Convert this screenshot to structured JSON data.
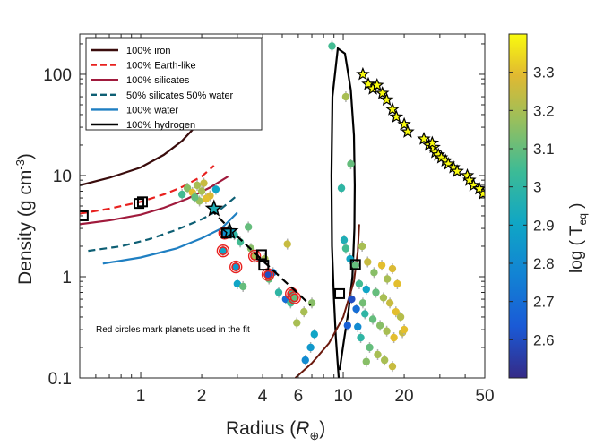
{
  "chart_data": {
    "type": "scatter",
    "xscale": "log",
    "yscale": "log",
    "xlim": [
      0.5,
      50
    ],
    "ylim": [
      0.1,
      250
    ],
    "xlabel": "Radius",
    "xlabel_unit": "R",
    "xlabel_unit_sub": "⊕",
    "ylabel": "Density (g cm",
    "ylabel_sup": "-3",
    "xticks": [
      1,
      2,
      4,
      6,
      10,
      20,
      50
    ],
    "yticks": [
      0.1,
      1,
      10,
      100
    ],
    "colorbar": {
      "label": "log ( T",
      "label_sub": "eq",
      "range": [
        2.5,
        3.4
      ],
      "ticks": [
        2.6,
        2.7,
        2.8,
        2.9,
        3,
        3.1,
        3.2,
        3.3
      ]
    },
    "annotation": "Red circles mark planets used in the fit",
    "legend_position": "top-left",
    "grid": false,
    "models": [
      {
        "name": "100% iron",
        "color": "#3a0c0c",
        "dash": "solid",
        "x": [
          0.5,
          0.7,
          1.0,
          1.3,
          1.6,
          1.85
        ],
        "y": [
          8,
          9.5,
          12,
          16,
          22,
          30
        ]
      },
      {
        "name": "100% Earth-like",
        "color": "#e8211f",
        "dash": "dashed",
        "x": [
          0.5,
          0.7,
          1.0,
          1.3,
          1.6,
          2.0,
          2.3
        ],
        "y": [
          4.2,
          4.7,
          5.5,
          6.5,
          7.7,
          9.8,
          12.5
        ]
      },
      {
        "name": "100% silicates",
        "color": "#a01a3c",
        "dash": "solid",
        "x": [
          0.5,
          0.7,
          1.0,
          1.3,
          1.7,
          2.2,
          2.7
        ],
        "y": [
          3.3,
          3.6,
          4.1,
          4.8,
          5.9,
          7.6,
          9.8
        ]
      },
      {
        "name": "50% silicates 50% water",
        "color": "#0e5f74",
        "dash": "dashed",
        "x": [
          0.55,
          0.8,
          1.1,
          1.5,
          2.0,
          2.5,
          2.95
        ],
        "y": [
          1.8,
          2.0,
          2.35,
          2.9,
          3.7,
          4.7,
          6.2
        ]
      },
      {
        "name": "100% water",
        "color": "#1f7fc2",
        "dash": "solid",
        "x": [
          0.65,
          1.0,
          1.5,
          2.0,
          2.5,
          3.0
        ],
        "y": [
          1.35,
          1.55,
          1.9,
          2.4,
          3.0,
          4.3
        ]
      },
      {
        "name": "100% hydrogen",
        "color": "#000000",
        "dash": "solid",
        "x": [
          9.5,
          9.2,
          9.0,
          8.8,
          8.75,
          8.85,
          9.4,
          10.2,
          10.9,
          11.3,
          11.4,
          11.35,
          11.1,
          10.6,
          10.1,
          9.6
        ],
        "y": [
          0.1,
          0.25,
          0.6,
          2.0,
          10,
          60,
          180,
          160,
          70,
          25,
          8,
          3,
          1.0,
          0.45,
          0.24,
          0.12
        ]
      }
    ],
    "extra_curves": [
      {
        "color": "#6b1a0e",
        "dash": "solid",
        "x": [
          5.8,
          7.0,
          8.5,
          10.0,
          11.3,
          11.8,
          12.0
        ],
        "y": [
          0.1,
          0.14,
          0.22,
          0.4,
          0.9,
          1.8,
          3.3
        ]
      }
    ],
    "fit_line": {
      "color": "#000000",
      "dash": "dashed",
      "x": [
        2.2,
        3.0,
        4.0,
        5.0,
        6.0,
        6.9
      ],
      "y": [
        4.7,
        2.5,
        1.45,
        0.95,
        0.68,
        0.52
      ]
    },
    "planets": [
      {
        "r": 1.9,
        "d": 8.0,
        "t": 3.2
      },
      {
        "r": 2.05,
        "d": 8.4,
        "t": 3.25
      },
      {
        "r": 1.7,
        "d": 7.5,
        "t": 3.15
      },
      {
        "r": 1.6,
        "d": 6.5,
        "t": 3.05
      },
      {
        "r": 1.8,
        "d": 6.8,
        "t": 3.3
      },
      {
        "r": 2.0,
        "d": 7.0,
        "t": 3.2
      },
      {
        "r": 2.2,
        "d": 6.3,
        "t": 3.28
      },
      {
        "r": 1.95,
        "d": 5.6,
        "t": 3.18
      },
      {
        "r": 2.35,
        "d": 7.3,
        "t": 2.9
      },
      {
        "r": 1.85,
        "d": 6.1,
        "t": 3.1
      },
      {
        "r": 2.1,
        "d": 5.9,
        "t": 3.3
      },
      {
        "r": 3.4,
        "d": 3.1,
        "t": 3.1
      },
      {
        "r": 2.7,
        "d": 2.9,
        "t": 2.95
      },
      {
        "r": 2.9,
        "d": 2.6,
        "t": 3.0
      },
      {
        "r": 3.1,
        "d": 2.2,
        "t": 3.05
      },
      {
        "r": 3.5,
        "d": 1.9,
        "t": 3.15
      },
      {
        "r": 4.1,
        "d": 1.5,
        "t": 3.2
      },
      {
        "r": 5.3,
        "d": 2.1,
        "t": 3.25
      },
      {
        "r": 4.3,
        "d": 0.95,
        "t": 3.1
      },
      {
        "r": 4.5,
        "d": 1.1,
        "t": 2.75
      },
      {
        "r": 3.0,
        "d": 0.85,
        "t": 2.9
      },
      {
        "r": 4.8,
        "d": 0.7,
        "t": 3.0
      },
      {
        "r": 5.2,
        "d": 0.6,
        "t": 2.7
      },
      {
        "r": 5.5,
        "d": 0.55,
        "t": 3.05
      },
      {
        "r": 3.2,
        "d": 0.8,
        "t": 3.1
      },
      {
        "r": 5.9,
        "d": 0.35,
        "t": 3.2
      },
      {
        "r": 7.2,
        "d": 0.27,
        "t": 2.9
      },
      {
        "r": 6.5,
        "d": 0.15,
        "t": 2.8
      },
      {
        "r": 6.9,
        "d": 0.2,
        "t": 2.85
      },
      {
        "r": 6.4,
        "d": 0.45,
        "t": 3.2
      },
      {
        "r": 7.0,
        "d": 0.55,
        "t": 3.15
      },
      {
        "r": 8.8,
        "d": 190,
        "t": 3.05
      },
      {
        "r": 10.3,
        "d": 60,
        "t": 3.2
      },
      {
        "r": 10.9,
        "d": 13,
        "t": 3.1
      },
      {
        "r": 9.8,
        "d": 7.5,
        "t": 3.0
      },
      {
        "r": 10.1,
        "d": 2.3,
        "t": 2.95
      },
      {
        "r": 10.3,
        "d": 1.9,
        "t": 3.05
      },
      {
        "r": 10.8,
        "d": 1.5,
        "t": 2.9
      },
      {
        "r": 11.5,
        "d": 1.3,
        "t": 3.1
      },
      {
        "r": 12.4,
        "d": 2.0,
        "t": 3.2
      },
      {
        "r": 13.2,
        "d": 1.4,
        "t": 3.25
      },
      {
        "r": 14.2,
        "d": 1.1,
        "t": 3.15
      },
      {
        "r": 15.5,
        "d": 1.3,
        "t": 3.3
      },
      {
        "r": 16.5,
        "d": 0.95,
        "t": 3.2
      },
      {
        "r": 17.5,
        "d": 1.2,
        "t": 3.28
      },
      {
        "r": 18.5,
        "d": 0.85,
        "t": 3.3
      },
      {
        "r": 12.0,
        "d": 0.85,
        "t": 3.05
      },
      {
        "r": 13.0,
        "d": 0.75,
        "t": 2.9
      },
      {
        "r": 14.5,
        "d": 0.7,
        "t": 3.1
      },
      {
        "r": 15.8,
        "d": 0.62,
        "t": 3.2
      },
      {
        "r": 17.0,
        "d": 0.55,
        "t": 3.25
      },
      {
        "r": 18.2,
        "d": 0.45,
        "t": 3.3
      },
      {
        "r": 19.2,
        "d": 0.4,
        "t": 3.22
      },
      {
        "r": 11.6,
        "d": 0.48,
        "t": 2.7
      },
      {
        "r": 12.8,
        "d": 0.43,
        "t": 3.0
      },
      {
        "r": 14.0,
        "d": 0.38,
        "t": 3.1
      },
      {
        "r": 15.2,
        "d": 0.33,
        "t": 3.15
      },
      {
        "r": 16.4,
        "d": 0.29,
        "t": 3.2
      },
      {
        "r": 17.8,
        "d": 0.25,
        "t": 3.3
      },
      {
        "r": 19.6,
        "d": 0.28,
        "t": 3.25
      },
      {
        "r": 12.2,
        "d": 0.25,
        "t": 3.0
      },
      {
        "r": 13.5,
        "d": 0.2,
        "t": 3.1
      },
      {
        "r": 14.8,
        "d": 0.17,
        "t": 3.2
      },
      {
        "r": 16.0,
        "d": 0.15,
        "t": 3.2
      },
      {
        "r": 17.5,
        "d": 0.13,
        "t": 3.25
      },
      {
        "r": 13.0,
        "d": 0.145,
        "t": 3.15
      },
      {
        "r": 11.0,
        "d": 0.6,
        "t": 2.6
      },
      {
        "r": 10.5,
        "d": 0.33,
        "t": 2.65
      },
      {
        "r": 11.8,
        "d": 0.32,
        "t": 2.8
      },
      {
        "r": 20.0,
        "d": 0.3,
        "t": 3.3
      },
      {
        "r": 12.5,
        "d": 0.55,
        "t": 3.12
      }
    ],
    "fit_planets": [
      {
        "r": 2.6,
        "d": 2.7,
        "t": 2.8
      },
      {
        "r": 2.55,
        "d": 1.8,
        "t": 2.9
      },
      {
        "r": 2.95,
        "d": 1.25,
        "t": 2.85
      },
      {
        "r": 3.65,
        "d": 1.6,
        "t": 3.2
      },
      {
        "r": 4.25,
        "d": 1.05,
        "t": 2.6
      },
      {
        "r": 5.55,
        "d": 0.68,
        "t": 3.05
      },
      {
        "r": 5.75,
        "d": 0.62,
        "t": 3.1
      }
    ],
    "highlight_planets": [
      {
        "r": 2.3,
        "d": 4.7,
        "t": 2.95
      },
      {
        "r": 2.75,
        "d": 2.8,
        "t": 2.9
      }
    ],
    "square_markers": [
      {
        "r": 0.52,
        "d": 4.0
      },
      {
        "r": 0.98,
        "d": 5.3
      },
      {
        "r": 1.02,
        "d": 5.5
      },
      {
        "r": 2.65,
        "d": 2.7
      },
      {
        "r": 3.95,
        "d": 1.65
      },
      {
        "r": 4.05,
        "d": 1.3
      },
      {
        "r": 9.6,
        "d": 0.68
      },
      {
        "r": 11.5,
        "d": 1.32
      }
    ],
    "star_markers": [
      {
        "r": 12.5,
        "d": 100
      },
      {
        "r": 13.3,
        "d": 80
      },
      {
        "r": 14.0,
        "d": 72
      },
      {
        "r": 14.7,
        "d": 78
      },
      {
        "r": 15.6,
        "d": 65
      },
      {
        "r": 16.4,
        "d": 56
      },
      {
        "r": 17.5,
        "d": 45
      },
      {
        "r": 18.3,
        "d": 38
      },
      {
        "r": 20.0,
        "d": 32
      },
      {
        "r": 20.8,
        "d": 27
      },
      {
        "r": 25.0,
        "d": 23
      },
      {
        "r": 26.5,
        "d": 20
      },
      {
        "r": 28.0,
        "d": 19
      },
      {
        "r": 28.5,
        "d": 17
      },
      {
        "r": 29.5,
        "d": 16
      },
      {
        "r": 30.5,
        "d": 15
      },
      {
        "r": 32.0,
        "d": 14
      },
      {
        "r": 33.0,
        "d": 13
      },
      {
        "r": 35.0,
        "d": 12
      },
      {
        "r": 36.5,
        "d": 11
      },
      {
        "r": 41.0,
        "d": 10
      },
      {
        "r": 42.0,
        "d": 9
      },
      {
        "r": 44.0,
        "d": 8
      },
      {
        "r": 47.0,
        "d": 7.4
      },
      {
        "r": 49.0,
        "d": 6.6
      },
      {
        "r": 27.5,
        "d": 21
      }
    ]
  }
}
